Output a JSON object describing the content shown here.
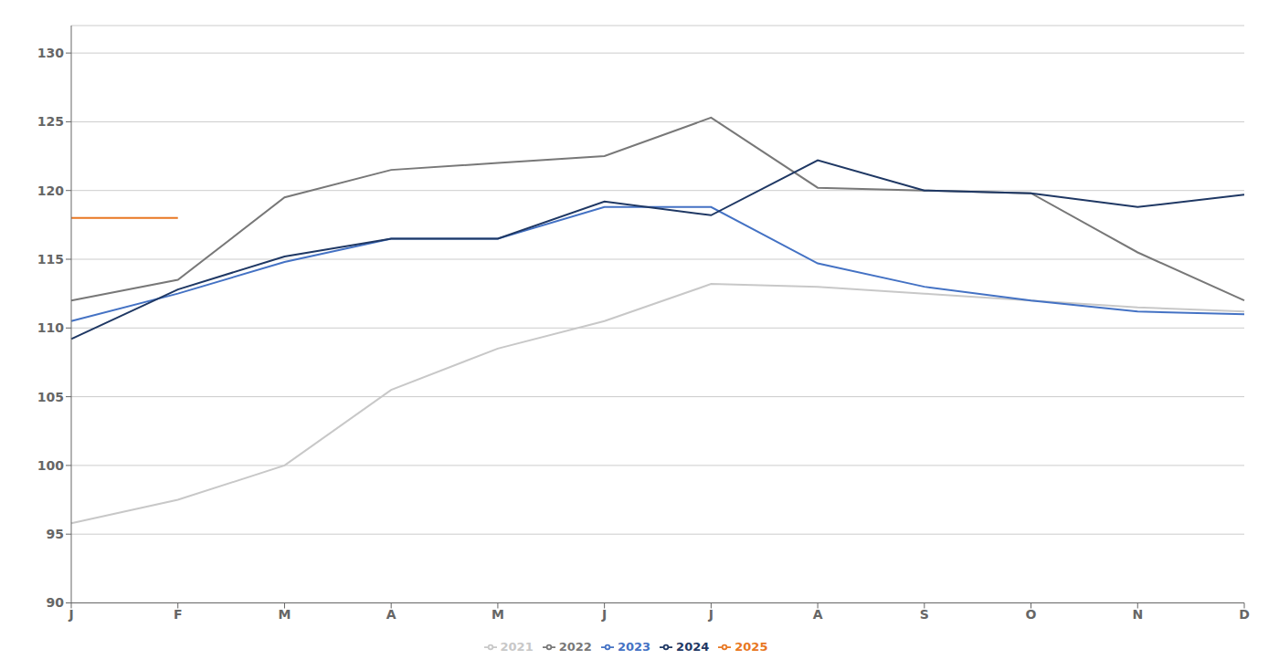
{
  "chart_data": {
    "type": "line",
    "categories": [
      "J",
      "F",
      "M",
      "A",
      "M",
      "J",
      "J",
      "A",
      "S",
      "O",
      "N",
      "D"
    ],
    "series": [
      {
        "name": "2021",
        "color": "#c8c8c8",
        "values": [
          95.8,
          97.5,
          100.0,
          105.5,
          108.5,
          110.5,
          113.2,
          113.0,
          112.5,
          112.0,
          111.5,
          111.2
        ]
      },
      {
        "name": "2022",
        "color": "#787878",
        "values": [
          112.0,
          113.5,
          119.5,
          121.5,
          122.0,
          122.5,
          125.3,
          120.2,
          120.0,
          119.8,
          115.5,
          112.0
        ]
      },
      {
        "name": "2023",
        "color": "#4472c4",
        "values": [
          110.5,
          112.5,
          114.8,
          116.5,
          116.5,
          118.8,
          118.8,
          114.7,
          113.0,
          112.0,
          111.2,
          111.0
        ]
      },
      {
        "name": "2024",
        "color": "#1f3864",
        "values": [
          109.2,
          112.8,
          115.2,
          116.5,
          116.5,
          119.2,
          118.2,
          122.2,
          120.0,
          119.8,
          118.8,
          119.7
        ]
      },
      {
        "name": "2025",
        "color": "#e87722",
        "values": [
          118.0,
          118.0,
          null,
          null,
          null,
          null,
          null,
          null,
          null,
          null,
          null,
          null
        ]
      }
    ],
    "ylim": [
      90,
      132
    ],
    "yticks": [
      90,
      95,
      100,
      105,
      110,
      115,
      120,
      125,
      130
    ],
    "grid": true,
    "legend": "bottom"
  }
}
